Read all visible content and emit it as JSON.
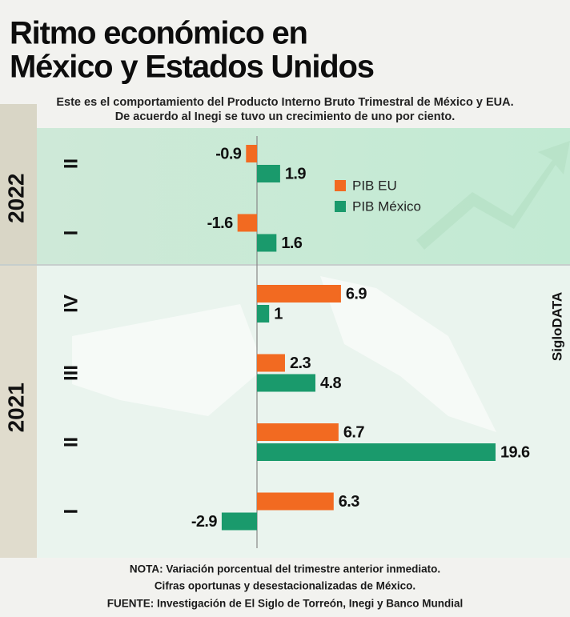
{
  "chart_data": {
    "type": "bar",
    "title": [
      "Ritmo económico en",
      "México y Estados Unidos"
    ],
    "subtitle": [
      "Este es el comportamiento del Producto Interno Bruto Trimestral de México y EUA.",
      "De acuerdo al Inegi se tuvo un crecimiento de uno por ciento."
    ],
    "years": [
      {
        "label": "2022",
        "quarters": [
          "II",
          "I"
        ]
      },
      {
        "label": "2021",
        "quarters": [
          "IV",
          "III",
          "II",
          "I"
        ]
      }
    ],
    "series": [
      {
        "name": "PIB EU",
        "color": "#f26a21",
        "values": [
          -0.9,
          -1.6,
          6.9,
          2.3,
          6.7,
          6.3
        ]
      },
      {
        "name": "PIB México",
        "color": "#1a9a6c",
        "values": [
          1.9,
          1.6,
          1,
          4.8,
          19.6,
          -2.9
        ]
      }
    ],
    "brand": "SigloDATA",
    "notes": [
      "NOTA: Variación porcentual del trimestre anterior inmediato.",
      "Cifras oportunas y desestacionalizadas de México.",
      "FUENTE: Investigación de El Siglo de Torreón, Inegi y Banco Mundial"
    ]
  }
}
